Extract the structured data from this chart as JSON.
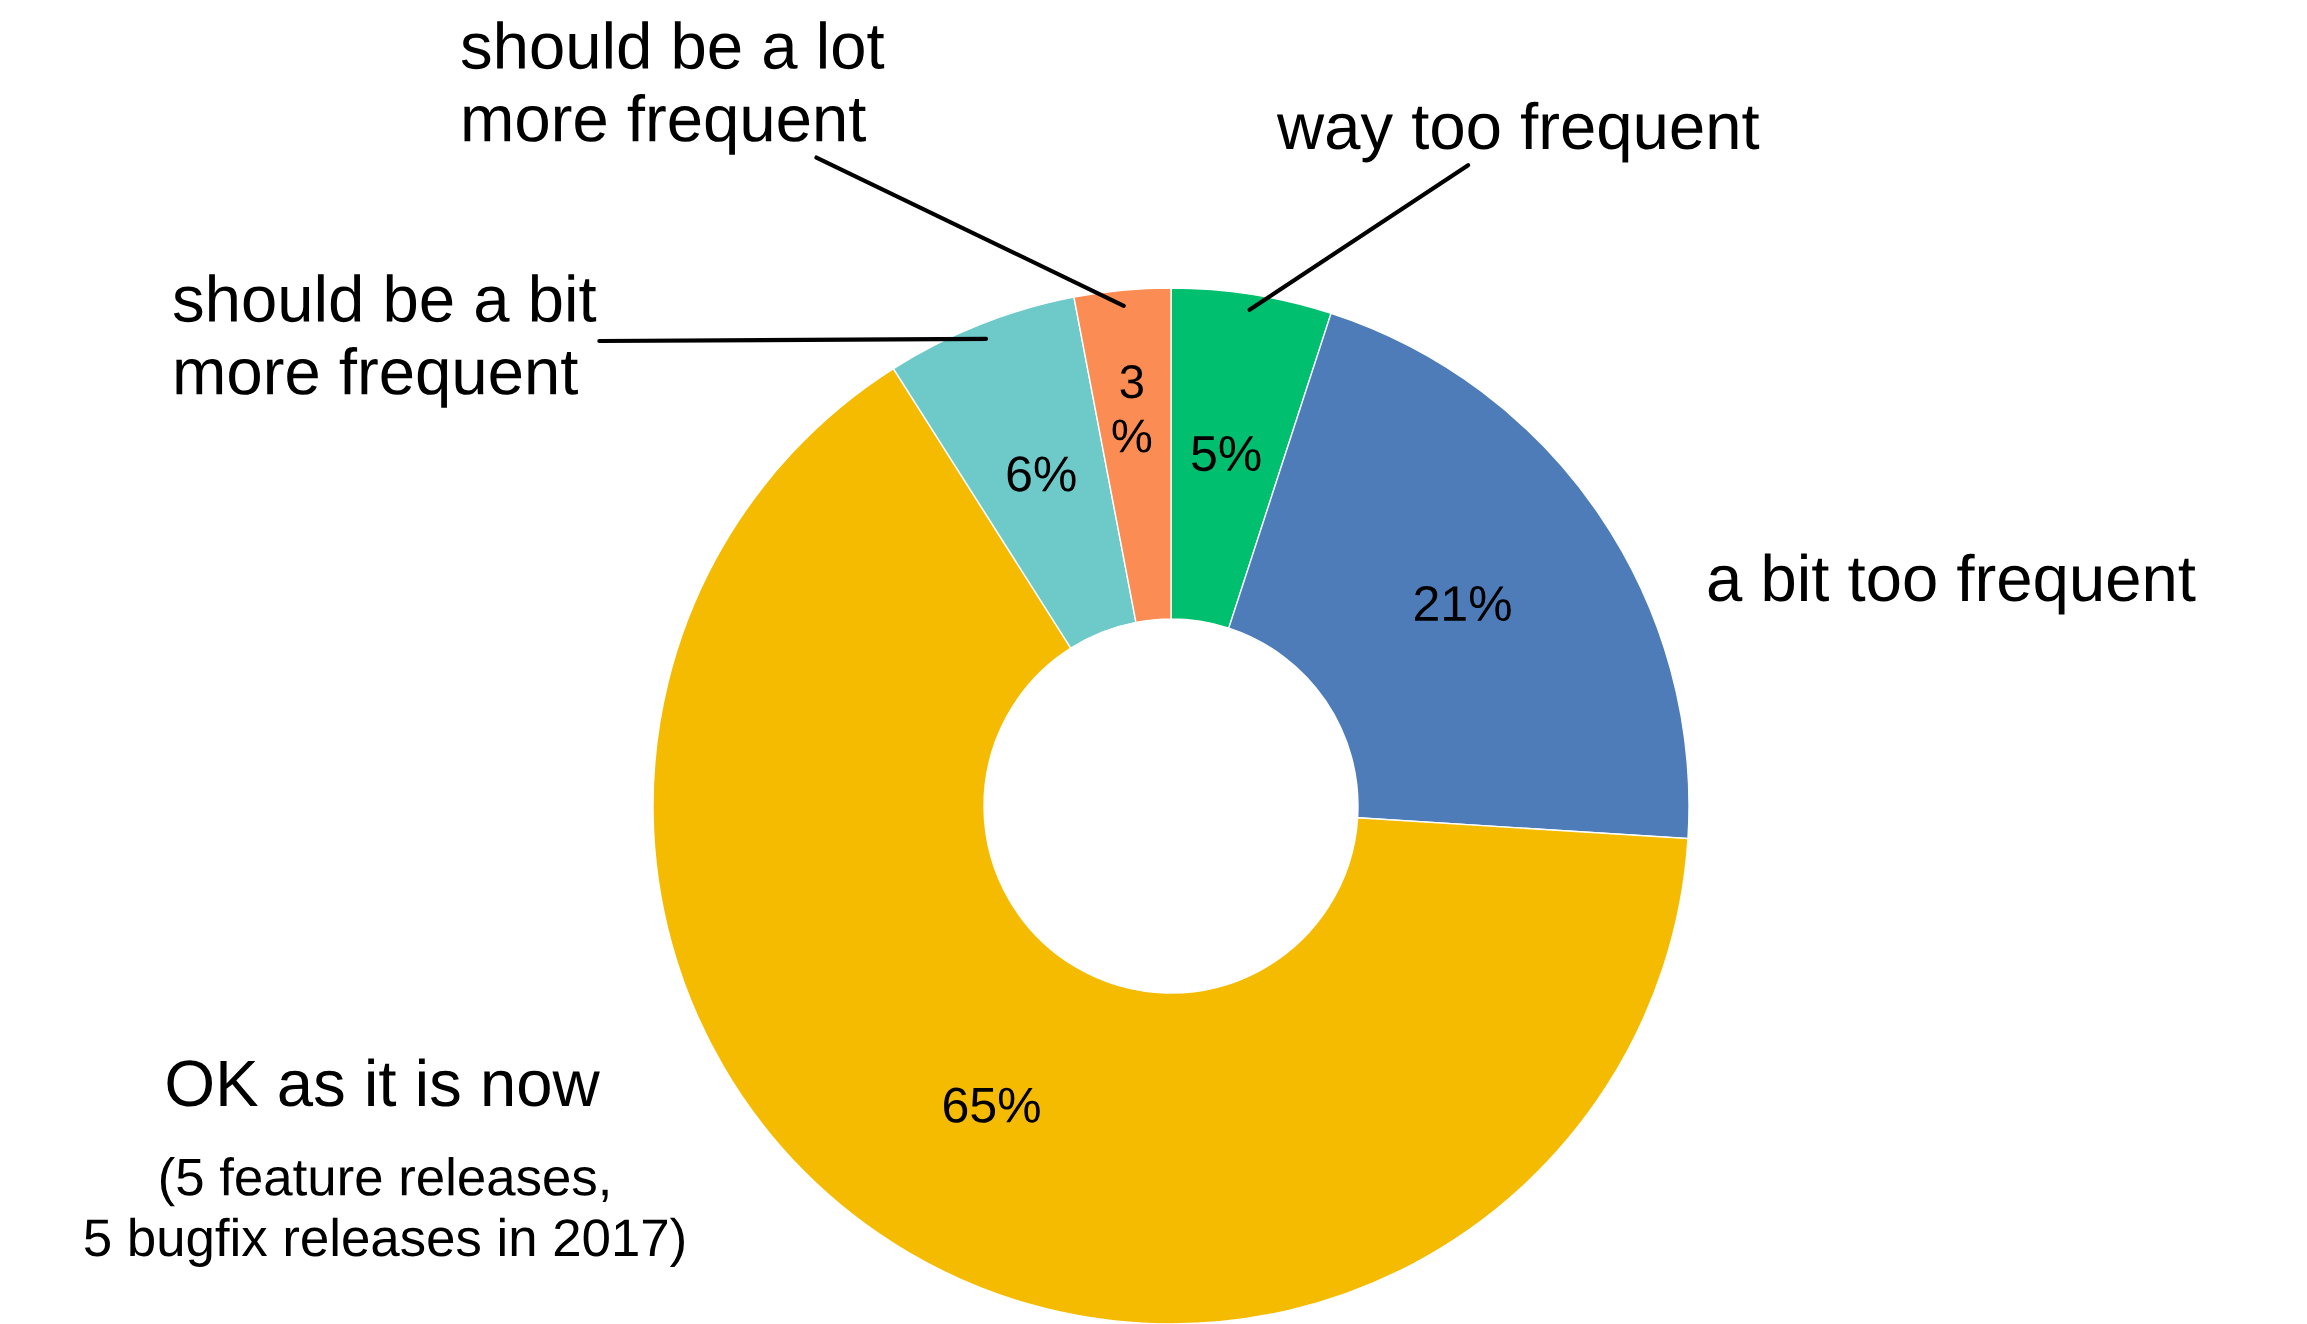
{
  "chart_data": {
    "type": "donut",
    "categories": [
      "way too frequent",
      "a bit too frequent",
      "OK as it is now",
      "should be a bit\nmore frequent",
      "should be a lot\nmore frequent"
    ],
    "values": [
      5,
      21,
      65,
      6,
      3
    ],
    "colors": [
      "#00bf6f",
      "#4e7cb8",
      "#f5bb00",
      "#6ec9c9",
      "#fb8c53"
    ],
    "value_labels": [
      "5%",
      "21%",
      "65%",
      "6%",
      "3\n%"
    ],
    "annotations": [
      "(5 feature releases,\n5 bugfix releases in 2017)"
    ],
    "legend": false
  }
}
